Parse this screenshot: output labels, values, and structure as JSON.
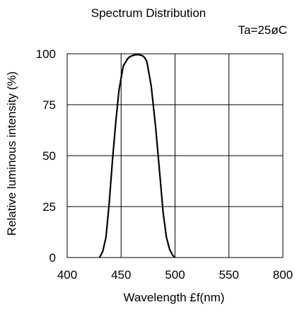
{
  "chart_data": {
    "type": "line",
    "title": "Spectrum Distribution",
    "annotation": "Ta=25øC",
    "xlabel": "Wavelength  £f(nm)",
    "ylabel": "Relative luminous intensity (%)",
    "xlim": [
      400,
      800
    ],
    "ylim": [
      0,
      100
    ],
    "xticks": [
      "400",
      "450",
      "500",
      "550",
      "800"
    ],
    "yticks": [
      "0",
      "25",
      "50",
      "75",
      "100"
    ],
    "grid": true,
    "series": [
      {
        "x": [
          430,
          433,
          436,
          439,
          442,
          445,
          448,
          452,
          456,
          458,
          460,
          463,
          467,
          470,
          472,
          474,
          478,
          482,
          486,
          489,
          492,
          495,
          498,
          500
        ],
        "y": [
          0,
          3,
          10,
          27,
          48,
          66,
          82,
          94,
          97.5,
          98.5,
          99,
          99.5,
          99.5,
          99,
          98,
          96,
          84,
          64,
          40,
          22,
          10,
          4,
          1,
          0
        ]
      }
    ]
  }
}
